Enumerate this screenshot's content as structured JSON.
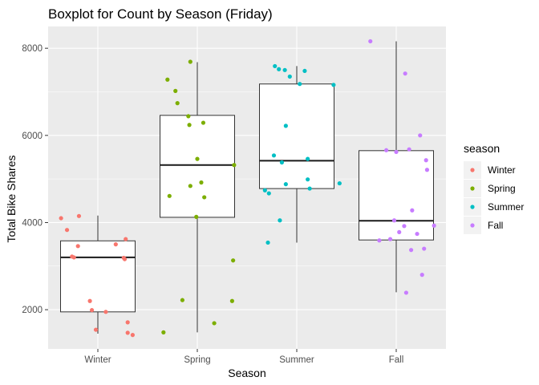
{
  "chart_data": {
    "type": "boxplot",
    "title": "Boxplot for Count by Season (Friday)",
    "xlabel": "Season",
    "ylabel": "Total Bike Shares",
    "categories": [
      "Winter",
      "Spring",
      "Summer",
      "Fall"
    ],
    "ylim": [
      1100,
      8500
    ],
    "yticks": [
      2000,
      4000,
      6000,
      8000
    ],
    "ytick_labels": [
      "2000",
      "4000",
      "6000",
      "8000"
    ],
    "grid": true,
    "legend": {
      "title": "season",
      "placement": "right",
      "entries": [
        "Winter",
        "Spring",
        "Summer",
        "Fall"
      ]
    },
    "colors": {
      "Winter": "#F8766D",
      "Spring": "#7CAE00",
      "Summer": "#00BFC4",
      "Fall": "#C77CFF",
      "panel": "#EBEBEB",
      "grid": "#FFFFFF"
    },
    "boxes": [
      {
        "category": "Winter",
        "whisker_low": 1450,
        "q1": 1950,
        "median": 3200,
        "q3": 3580,
        "whisker_high": 4160
      },
      {
        "category": "Spring",
        "whisker_low": 1480,
        "q1": 4120,
        "median": 5320,
        "q3": 6460,
        "whisker_high": 7680
      },
      {
        "category": "Summer",
        "whisker_low": 3540,
        "q1": 4780,
        "median": 5420,
        "q3": 7180,
        "whisker_high": 7590
      },
      {
        "category": "Fall",
        "whisker_low": 2400,
        "q1": 3600,
        "median": 4040,
        "q3": 5650,
        "whisker_high": 8160
      }
    ],
    "points": [
      {
        "category": "Winter",
        "jitter": -0.37,
        "y": 4100
      },
      {
        "category": "Winter",
        "jitter": -0.19,
        "y": 4150
      },
      {
        "category": "Winter",
        "jitter": -0.31,
        "y": 3830
      },
      {
        "category": "Winter",
        "jitter": -0.2,
        "y": 3460
      },
      {
        "category": "Winter",
        "jitter": 0.18,
        "y": 3500
      },
      {
        "category": "Winter",
        "jitter": 0.28,
        "y": 3620
      },
      {
        "category": "Winter",
        "jitter": -0.26,
        "y": 3220
      },
      {
        "category": "Winter",
        "jitter": -0.24,
        "y": 3200
      },
      {
        "category": "Winter",
        "jitter": 0.26,
        "y": 3190
      },
      {
        "category": "Winter",
        "jitter": 0.27,
        "y": 3160
      },
      {
        "category": "Winter",
        "jitter": -0.08,
        "y": 2200
      },
      {
        "category": "Winter",
        "jitter": -0.06,
        "y": 1990
      },
      {
        "category": "Winter",
        "jitter": 0.08,
        "y": 1950
      },
      {
        "category": "Winter",
        "jitter": 0.3,
        "y": 1710
      },
      {
        "category": "Winter",
        "jitter": -0.02,
        "y": 1540
      },
      {
        "category": "Winter",
        "jitter": 0.3,
        "y": 1470
      },
      {
        "category": "Winter",
        "jitter": 0.35,
        "y": 1420
      },
      {
        "category": "Spring",
        "jitter": -0.07,
        "y": 7690
      },
      {
        "category": "Spring",
        "jitter": -0.3,
        "y": 7280
      },
      {
        "category": "Spring",
        "jitter": -0.22,
        "y": 7020
      },
      {
        "category": "Spring",
        "jitter": -0.2,
        "y": 6740
      },
      {
        "category": "Spring",
        "jitter": -0.09,
        "y": 6440
      },
      {
        "category": "Spring",
        "jitter": -0.08,
        "y": 6240
      },
      {
        "category": "Spring",
        "jitter": 0.06,
        "y": 6290
      },
      {
        "category": "Spring",
        "jitter": 0.0,
        "y": 5460
      },
      {
        "category": "Spring",
        "jitter": 0.37,
        "y": 5320
      },
      {
        "category": "Spring",
        "jitter": 0.04,
        "y": 4920
      },
      {
        "category": "Spring",
        "jitter": -0.07,
        "y": 4840
      },
      {
        "category": "Spring",
        "jitter": -0.28,
        "y": 4610
      },
      {
        "category": "Spring",
        "jitter": 0.07,
        "y": 4580
      },
      {
        "category": "Spring",
        "jitter": -0.01,
        "y": 4130
      },
      {
        "category": "Spring",
        "jitter": 0.36,
        "y": 3130
      },
      {
        "category": "Spring",
        "jitter": -0.15,
        "y": 2220
      },
      {
        "category": "Spring",
        "jitter": 0.35,
        "y": 2200
      },
      {
        "category": "Spring",
        "jitter": 0.17,
        "y": 1690
      },
      {
        "category": "Spring",
        "jitter": -0.34,
        "y": 1480
      },
      {
        "category": "Summer",
        "jitter": -0.22,
        "y": 7590
      },
      {
        "category": "Summer",
        "jitter": -0.18,
        "y": 7520
      },
      {
        "category": "Summer",
        "jitter": -0.12,
        "y": 7500
      },
      {
        "category": "Summer",
        "jitter": 0.08,
        "y": 7480
      },
      {
        "category": "Summer",
        "jitter": -0.07,
        "y": 7350
      },
      {
        "category": "Summer",
        "jitter": 0.03,
        "y": 7180
      },
      {
        "category": "Summer",
        "jitter": 0.37,
        "y": 7160
      },
      {
        "category": "Summer",
        "jitter": -0.11,
        "y": 6220
      },
      {
        "category": "Summer",
        "jitter": -0.23,
        "y": 5540
      },
      {
        "category": "Summer",
        "jitter": -0.15,
        "y": 5380
      },
      {
        "category": "Summer",
        "jitter": 0.11,
        "y": 5460
      },
      {
        "category": "Summer",
        "jitter": 0.11,
        "y": 4990
      },
      {
        "category": "Summer",
        "jitter": -0.11,
        "y": 4880
      },
      {
        "category": "Summer",
        "jitter": 0.13,
        "y": 4780
      },
      {
        "category": "Summer",
        "jitter": -0.32,
        "y": 4740
      },
      {
        "category": "Summer",
        "jitter": -0.28,
        "y": 4670
      },
      {
        "category": "Summer",
        "jitter": 0.43,
        "y": 4900
      },
      {
        "category": "Summer",
        "jitter": -0.17,
        "y": 4050
      },
      {
        "category": "Summer",
        "jitter": -0.29,
        "y": 3540
      },
      {
        "category": "Fall",
        "jitter": -0.26,
        "y": 8160
      },
      {
        "category": "Fall",
        "jitter": 0.09,
        "y": 7420
      },
      {
        "category": "Fall",
        "jitter": 0.24,
        "y": 6000
      },
      {
        "category": "Fall",
        "jitter": -0.1,
        "y": 5660
      },
      {
        "category": "Fall",
        "jitter": 0.0,
        "y": 5620
      },
      {
        "category": "Fall",
        "jitter": 0.13,
        "y": 5680
      },
      {
        "category": "Fall",
        "jitter": 0.3,
        "y": 5430
      },
      {
        "category": "Fall",
        "jitter": 0.31,
        "y": 5210
      },
      {
        "category": "Fall",
        "jitter": 0.16,
        "y": 4280
      },
      {
        "category": "Fall",
        "jitter": -0.02,
        "y": 4050
      },
      {
        "category": "Fall",
        "jitter": 0.08,
        "y": 3920
      },
      {
        "category": "Fall",
        "jitter": 0.38,
        "y": 3930
      },
      {
        "category": "Fall",
        "jitter": 0.03,
        "y": 3780
      },
      {
        "category": "Fall",
        "jitter": 0.21,
        "y": 3740
      },
      {
        "category": "Fall",
        "jitter": -0.06,
        "y": 3620
      },
      {
        "category": "Fall",
        "jitter": -0.17,
        "y": 3590
      },
      {
        "category": "Fall",
        "jitter": 0.28,
        "y": 3400
      },
      {
        "category": "Fall",
        "jitter": 0.15,
        "y": 3370
      },
      {
        "category": "Fall",
        "jitter": 0.26,
        "y": 2800
      },
      {
        "category": "Fall",
        "jitter": 0.1,
        "y": 2390
      }
    ]
  }
}
